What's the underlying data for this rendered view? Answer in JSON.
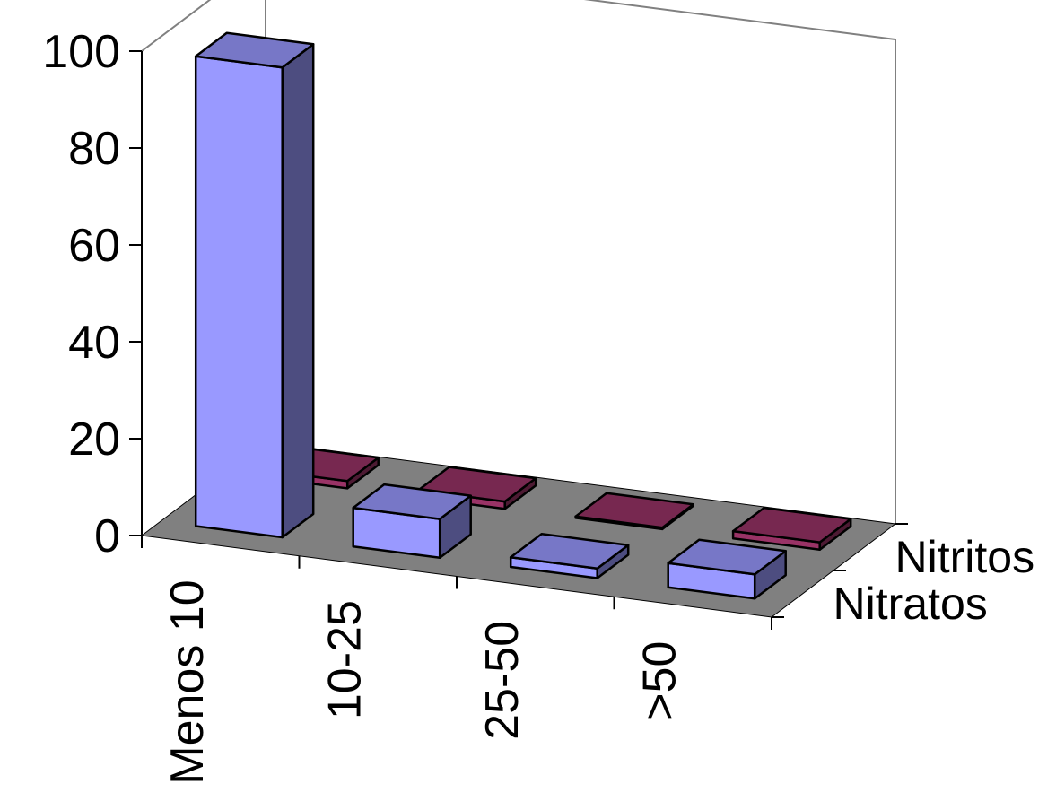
{
  "chart_data": {
    "type": "bar",
    "subtype": "3d-column",
    "categories": [
      "Menos 10",
      "10-25",
      "25-50",
      ">50"
    ],
    "series": [
      {
        "name": "Nitratos",
        "values": [
          97,
          8,
          2,
          5
        ],
        "color": "#9999ff"
      },
      {
        "name": "Nitritos",
        "values": [
          1.5,
          1.5,
          0.3,
          1.5
        ],
        "color": "#993366"
      }
    ],
    "yticks": [
      "0",
      "20",
      "40",
      "60",
      "80",
      "100"
    ],
    "ylim": [
      0,
      100
    ],
    "grid": false,
    "floor_color": "#808080",
    "title": "",
    "xlabel": "",
    "ylabel": ""
  }
}
